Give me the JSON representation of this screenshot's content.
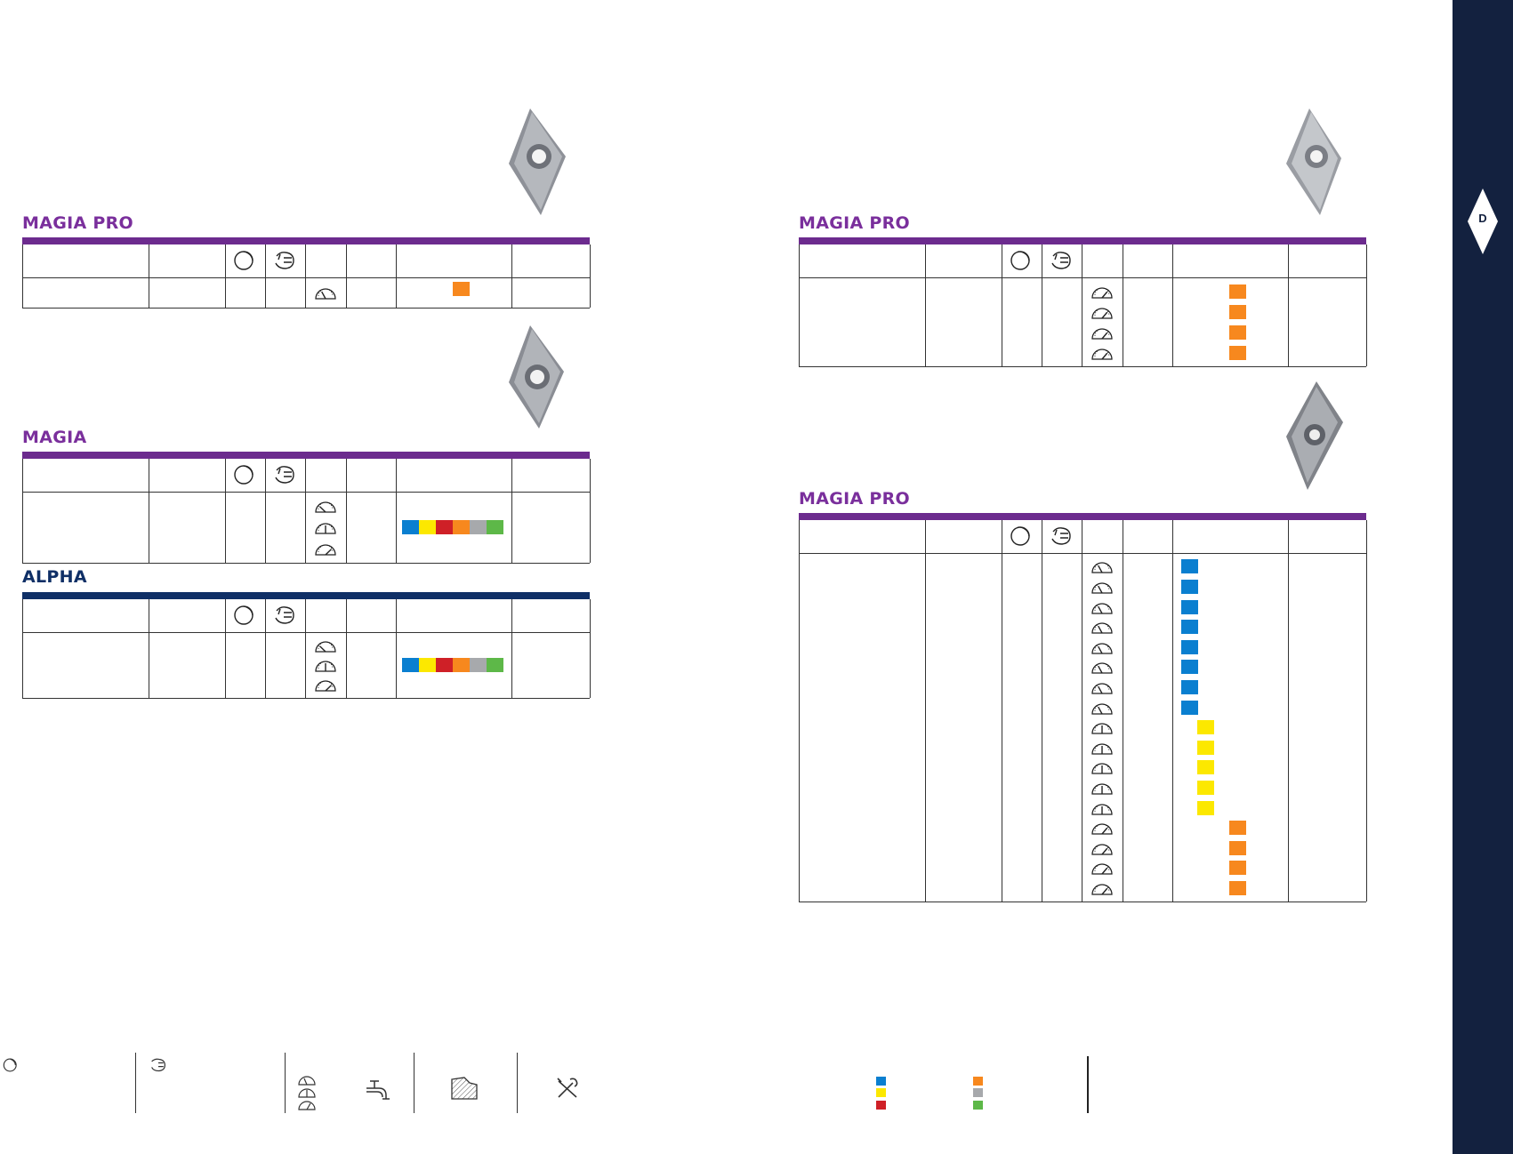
{
  "sidebar": {
    "section_letter": "D"
  },
  "colors": {
    "purple": "#6c2b8e",
    "navy": "#0f2f66",
    "blue": "#0a7fd0",
    "yellow": "#fce800",
    "red": "#cf2027",
    "orange": "#f7881e",
    "grey": "#a7a9ac",
    "green": "#5db848"
  },
  "tables": [
    {
      "brand": "MAGIA PRO",
      "rows": 1,
      "materials": [
        "orange"
      ]
    },
    {
      "brand": "MAGIA",
      "rows": 3,
      "materials": [
        "blue",
        "yellow",
        "red",
        "orange",
        "grey",
        "green"
      ]
    },
    {
      "brand": "ALPHA",
      "rows": 3,
      "materials": [
        "blue",
        "yellow",
        "red",
        "orange",
        "grey",
        "green"
      ]
    },
    {
      "brand": "MAGIA PRO",
      "rows": 4,
      "materials": [
        "orange",
        "orange",
        "orange",
        "orange"
      ]
    },
    {
      "brand": "MAGIA PRO",
      "rows": 17,
      "materials": [
        "blue",
        "blue",
        "blue",
        "blue",
        "blue",
        "blue",
        "blue",
        "blue",
        "yellow",
        "yellow",
        "yellow",
        "yellow",
        "yellow",
        "orange",
        "orange",
        "orange",
        "orange"
      ]
    }
  ],
  "icons": {
    "header_left": "round-insert-icon",
    "header_right": "chipbreaker-icon",
    "row": "speed-gauge-icon",
    "coolant": "coolant-tap-icon",
    "workpiece": "hatched-workpiece-icon",
    "tools": "tools-icon"
  }
}
